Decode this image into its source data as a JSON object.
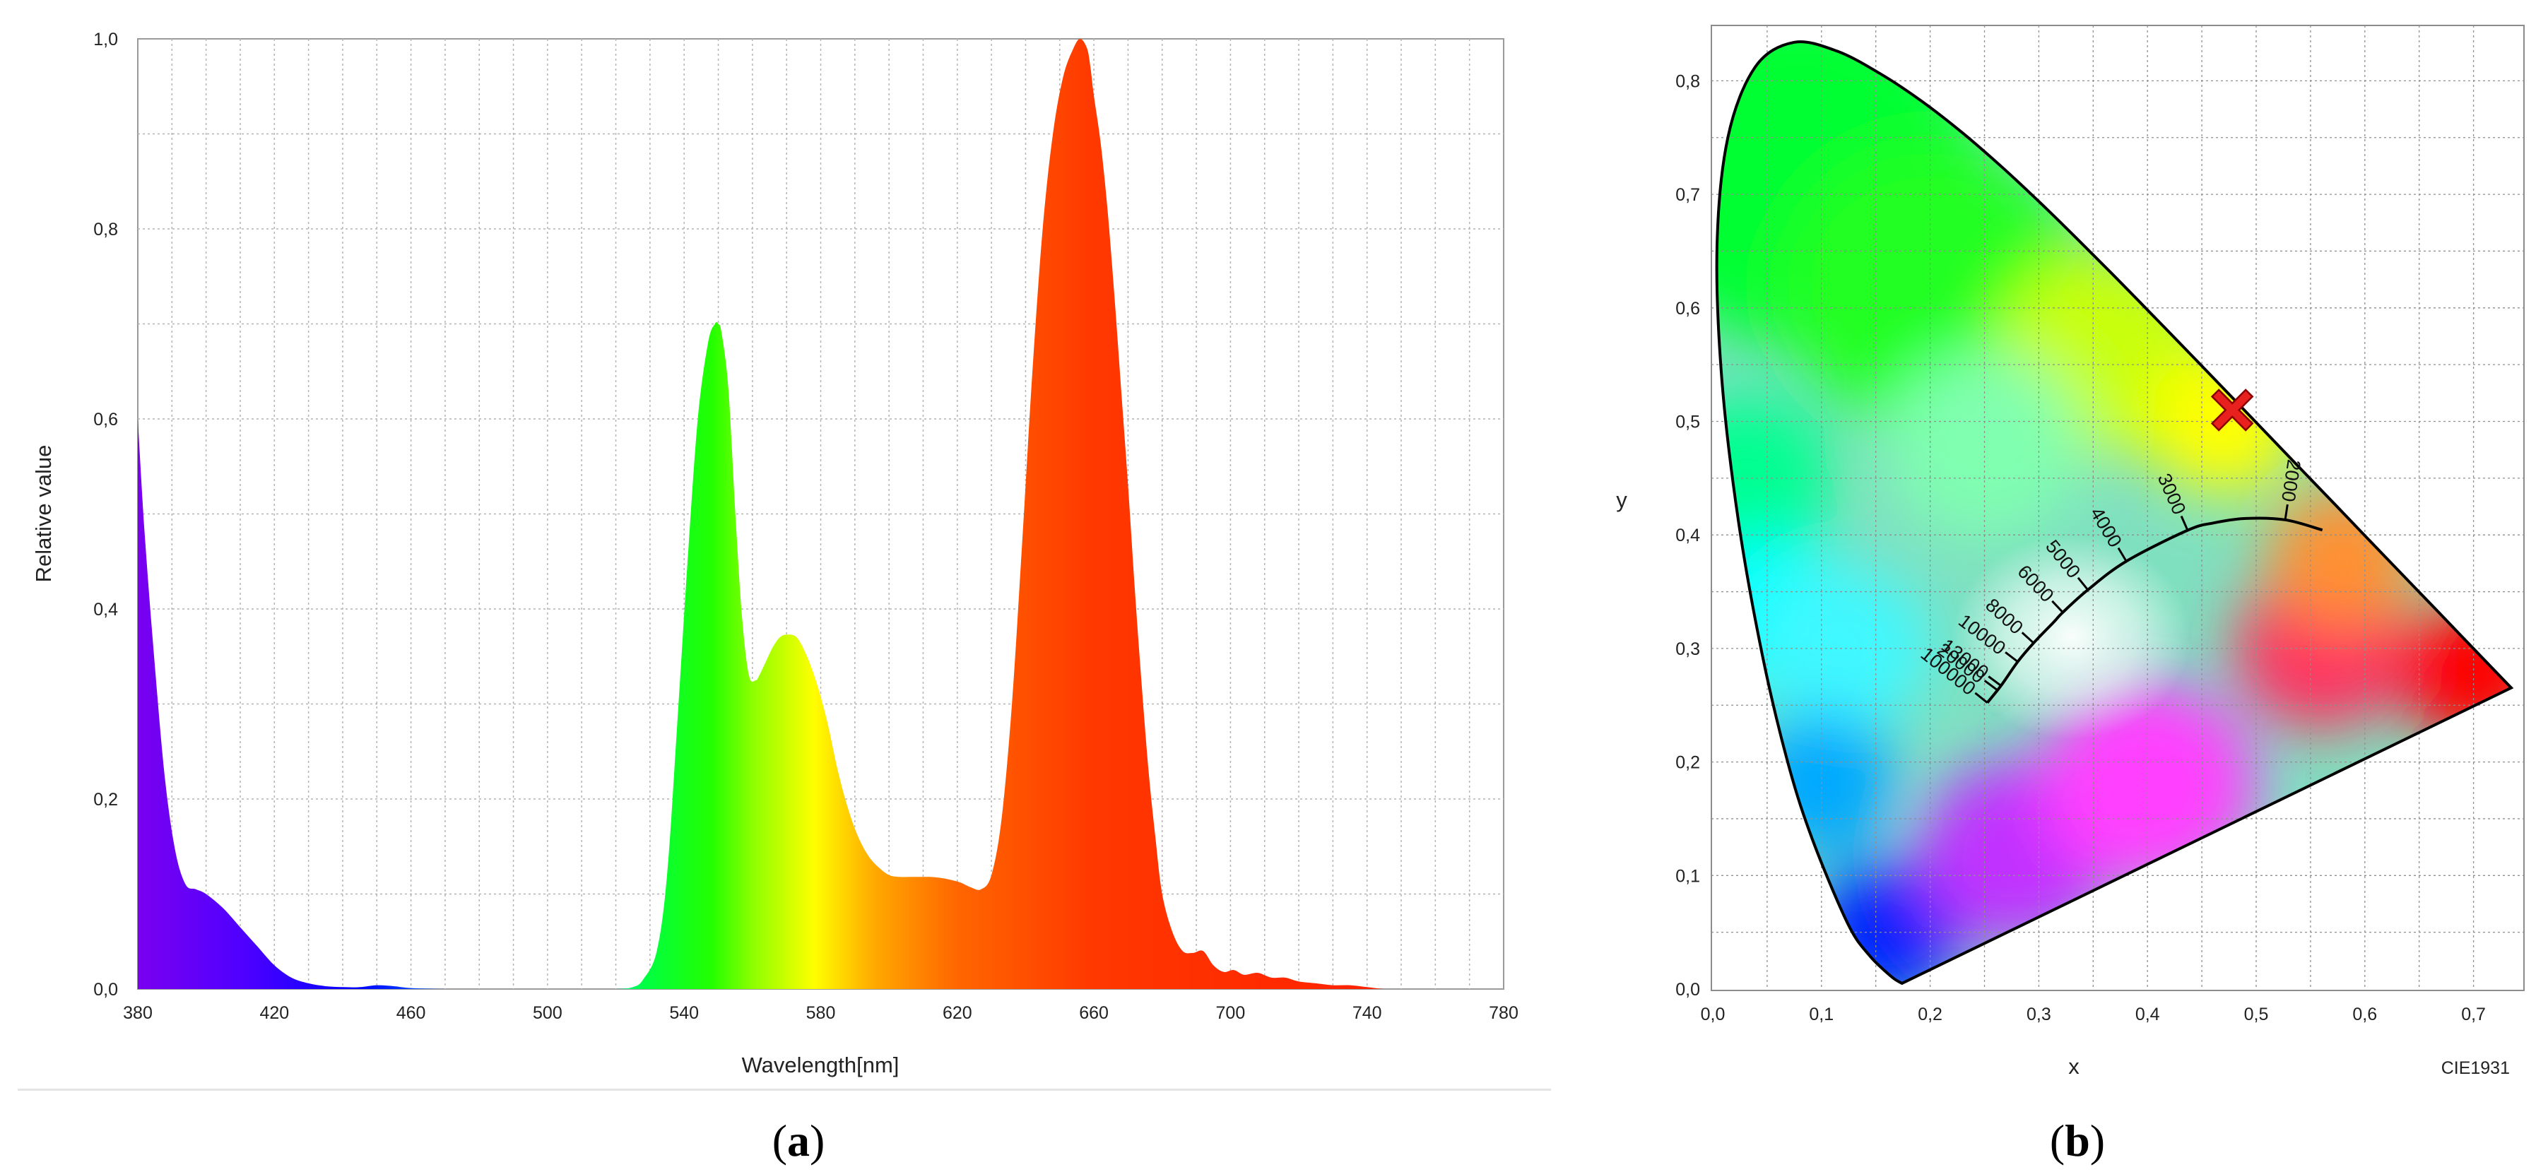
{
  "chart_data": [
    {
      "type": "area",
      "panel_label": "a",
      "xlabel": "Wavelength[nm]",
      "ylabel": "Relative value",
      "xlim": [
        380,
        780
      ],
      "ylim": [
        0,
        1
      ],
      "x_ticks": [
        "380",
        "420",
        "460",
        "500",
        "540",
        "580",
        "620",
        "660",
        "700",
        "740",
        "780"
      ],
      "y_ticks": [
        "0,0",
        "0,2",
        "0,4",
        "0,6",
        "0,8",
        "1,0"
      ],
      "grid": true,
      "x": [
        380,
        382,
        385,
        388,
        391,
        394,
        397,
        400,
        405,
        410,
        415,
        420,
        425,
        430,
        435,
        440,
        445,
        450,
        455,
        460,
        470,
        480,
        490,
        500,
        510,
        520,
        525,
        528,
        532,
        535,
        538,
        541,
        544,
        547,
        549,
        550,
        551,
        553,
        555,
        557,
        559,
        561,
        562,
        564,
        566,
        568,
        570,
        573,
        576,
        579,
        582,
        585,
        588,
        591,
        594,
        597,
        600,
        603,
        606,
        609,
        612,
        615,
        618,
        621,
        624,
        627,
        630,
        633,
        636,
        639,
        642,
        645,
        648,
        651,
        654,
        656,
        658,
        659,
        660,
        662,
        664,
        666,
        668,
        670,
        672,
        674,
        676,
        678,
        680,
        683,
        686,
        689,
        692,
        695,
        698,
        701,
        704,
        708,
        712,
        716,
        720,
        725,
        730,
        735,
        740,
        745,
        750,
        760,
        780
      ],
      "values": [
        0.6,
        0.48,
        0.34,
        0.22,
        0.145,
        0.11,
        0.105,
        0.1,
        0.085,
        0.065,
        0.045,
        0.025,
        0.012,
        0.006,
        0.003,
        0.002,
        0.002,
        0.004,
        0.003,
        0.001,
        0.0,
        0.0,
        0.0,
        0.0,
        0.0,
        0.0,
        0.002,
        0.01,
        0.04,
        0.12,
        0.28,
        0.45,
        0.6,
        0.68,
        0.7,
        0.7,
        0.69,
        0.63,
        0.5,
        0.39,
        0.33,
        0.325,
        0.33,
        0.345,
        0.36,
        0.37,
        0.373,
        0.37,
        0.35,
        0.32,
        0.28,
        0.23,
        0.19,
        0.16,
        0.14,
        0.128,
        0.12,
        0.118,
        0.118,
        0.118,
        0.118,
        0.117,
        0.115,
        0.112,
        0.107,
        0.105,
        0.12,
        0.18,
        0.3,
        0.47,
        0.65,
        0.8,
        0.9,
        0.96,
        0.99,
        1.0,
        0.99,
        0.97,
        0.94,
        0.89,
        0.82,
        0.73,
        0.63,
        0.53,
        0.42,
        0.32,
        0.23,
        0.16,
        0.1,
        0.06,
        0.04,
        0.038,
        0.04,
        0.025,
        0.018,
        0.02,
        0.015,
        0.017,
        0.012,
        0.012,
        0.008,
        0.006,
        0.004,
        0.004,
        0.002,
        0.0,
        0.0,
        0.0,
        0.0
      ]
    },
    {
      "type": "scatter",
      "panel_label": "b",
      "xlabel": "x",
      "ylabel": "y",
      "corner_label": "CIE1931",
      "xlim": [
        0,
        0.75
      ],
      "ylim": [
        0,
        0.85
      ],
      "x_ticks": [
        "0,0",
        "0,1",
        "0,2",
        "0,3",
        "0,4",
        "0,5",
        "0,6",
        "0,7"
      ],
      "y_ticks": [
        "0,0",
        "0,1",
        "0,2",
        "0,3",
        "0,4",
        "0,5",
        "0,6",
        "0,7",
        "0,8"
      ],
      "grid": true,
      "chromaticity_point": {
        "x": 0.478,
        "y": 0.51
      },
      "cct_labels": [
        "100000",
        "20000",
        "13000",
        "10000",
        "8000",
        "6000",
        "5000",
        "4000",
        "3000",
        "2000"
      ],
      "spectral_locus": [
        [
          0.1741,
          0.005
        ],
        [
          0.1644,
          0.0109
        ],
        [
          0.144,
          0.0297
        ],
        [
          0.1241,
          0.0578
        ],
        [
          0.0913,
          0.1327
        ],
        [
          0.0687,
          0.2007
        ],
        [
          0.0454,
          0.295
        ],
        [
          0.0235,
          0.4127
        ],
        [
          0.0082,
          0.5384
        ],
        [
          0.0039,
          0.6548
        ],
        [
          0.0139,
          0.7502
        ],
        [
          0.0389,
          0.812
        ],
        [
          0.0743,
          0.8338
        ],
        [
          0.1142,
          0.8262
        ],
        [
          0.1547,
          0.8059
        ],
        [
          0.1929,
          0.7816
        ],
        [
          0.2296,
          0.7543
        ],
        [
          0.2658,
          0.7243
        ],
        [
          0.3016,
          0.6923
        ],
        [
          0.3373,
          0.6589
        ],
        [
          0.3731,
          0.6245
        ],
        [
          0.4087,
          0.5896
        ],
        [
          0.4441,
          0.5547
        ],
        [
          0.4788,
          0.5202
        ],
        [
          0.5125,
          0.4866
        ],
        [
          0.5448,
          0.4544
        ],
        [
          0.5752,
          0.4242
        ],
        [
          0.6029,
          0.3965
        ],
        [
          0.627,
          0.3725
        ],
        [
          0.6482,
          0.3514
        ],
        [
          0.6658,
          0.334
        ],
        [
          0.6915,
          0.3083
        ],
        [
          0.714,
          0.2859
        ],
        [
          0.7347,
          0.2653
        ]
      ],
      "planckian_locus": [
        [
          0.2526,
          0.2522
        ],
        [
          0.2652,
          0.2672
        ],
        [
          0.2806,
          0.2883
        ],
        [
          0.2952,
          0.3048
        ],
        [
          0.3138,
          0.3233
        ],
        [
          0.3221,
          0.3318
        ],
        [
          0.3451,
          0.3516
        ],
        [
          0.3805,
          0.3768
        ],
        [
          0.4369,
          0.4041
        ],
        [
          0.461,
          0.4106
        ],
        [
          0.4903,
          0.4145
        ],
        [
          0.5267,
          0.4133
        ],
        [
          0.5609,
          0.4043
        ]
      ],
      "isotherm_points": [
        [
          0.2526,
          0.2522
        ],
        [
          0.2616,
          0.2635
        ],
        [
          0.2652,
          0.2672
        ],
        [
          0.2806,
          0.2883
        ],
        [
          0.2952,
          0.3048
        ],
        [
          0.3221,
          0.3318
        ],
        [
          0.3451,
          0.3516
        ],
        [
          0.3805,
          0.3768
        ],
        [
          0.4369,
          0.4041
        ],
        [
          0.5267,
          0.4133
        ]
      ]
    }
  ],
  "colors": {
    "grid": "#b4b4b4",
    "marker": "#e8201e",
    "locus": "#000000"
  }
}
